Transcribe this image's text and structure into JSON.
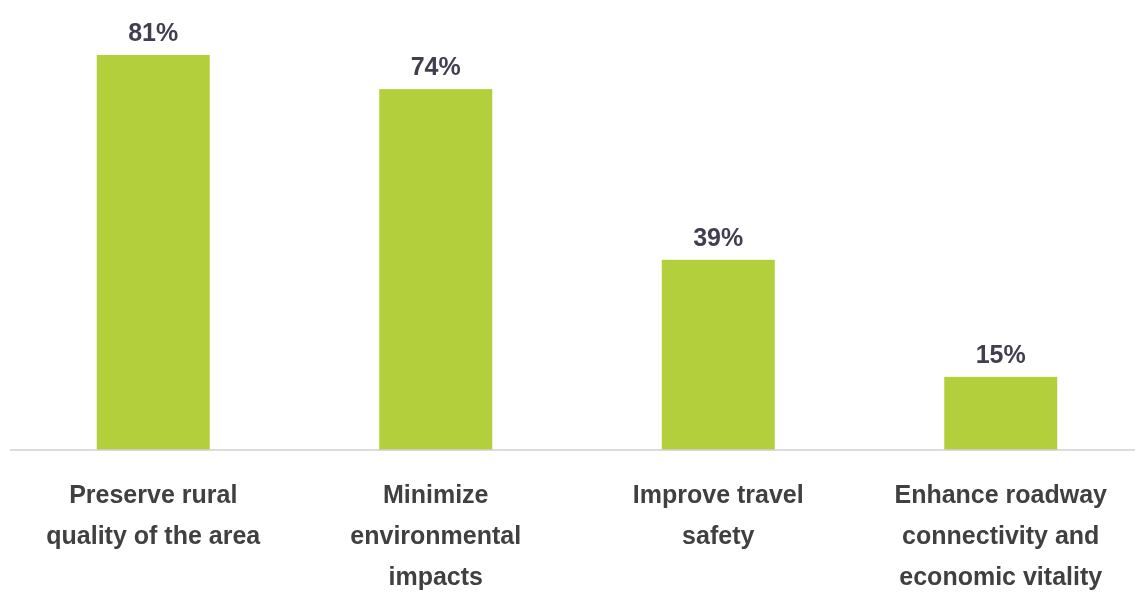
{
  "chart_data": {
    "type": "bar",
    "categories": [
      "Preserve rural quality of the area",
      "Minimize environmental impacts",
      "Improve travel safety",
      "Enhance roadway connectivity and economic vitality"
    ],
    "values": [
      81,
      74,
      39,
      15
    ],
    "value_labels": [
      "81%",
      "74%",
      "39%",
      "15%"
    ],
    "color": "#b3cf3c"
  }
}
